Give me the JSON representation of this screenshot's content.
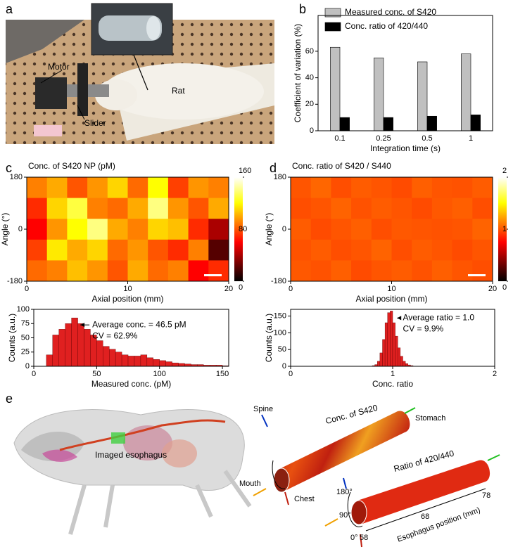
{
  "panel_labels": [
    "a",
    "b",
    "c",
    "d",
    "e"
  ],
  "photo_a": {
    "labels": [
      "Motor",
      "Slider",
      "Rat"
    ]
  },
  "chart_data": [
    {
      "type": "bar",
      "categories": [
        "0.1",
        "0.25",
        "0.5",
        "1"
      ],
      "series": [
        {
          "name": "Measured conc. of S420",
          "color": "#c0c0c0",
          "values": [
            63,
            55,
            52,
            58
          ]
        },
        {
          "name": "Conc. ratio of 420/440",
          "color": "#000000",
          "values": [
            10,
            10,
            11,
            12
          ]
        }
      ],
      "ylim": [
        0,
        87
      ],
      "yticks": [
        0,
        20,
        40,
        60
      ],
      "xlabel": "Integration time (s)",
      "ylabel": "Coefficient of variation (%)"
    },
    {
      "type": "heatmap",
      "title": "Conc. of S420 NP (pM)",
      "xlim": [
        0,
        20
      ],
      "xticks": [
        0,
        10,
        20
      ],
      "ylim": [
        -180,
        180
      ],
      "yticks": [
        -180,
        0,
        180
      ],
      "xlabel": "Axial position (mm)",
      "ylabel": "Angle (°)",
      "z": [
        [
          90,
          100,
          80,
          95,
          110,
          85,
          120,
          75,
          95,
          90
        ],
        [
          70,
          110,
          130,
          90,
          85,
          100,
          140,
          95,
          80,
          100
        ],
        [
          60,
          95,
          120,
          140,
          100,
          90,
          110,
          105,
          70,
          40
        ],
        [
          75,
          115,
          100,
          110,
          85,
          95,
          80,
          70,
          90,
          20
        ],
        [
          85,
          90,
          105,
          95,
          80,
          100,
          85,
          90,
          60,
          70
        ]
      ],
      "colorbar": {
        "lim": [
          0,
          160
        ],
        "ticks": [
          0,
          80,
          160
        ]
      }
    },
    {
      "type": "histogram",
      "color": "#e02020",
      "bins": [
        10,
        15,
        20,
        25,
        30,
        35,
        40,
        45,
        50,
        55,
        60,
        65,
        70,
        75,
        80,
        85,
        90,
        95,
        100,
        105,
        110,
        115,
        120,
        125,
        130,
        135,
        140,
        145,
        150,
        155
      ],
      "values": [
        20,
        55,
        65,
        75,
        85,
        75,
        65,
        55,
        45,
        35,
        30,
        25,
        20,
        18,
        18,
        20,
        15,
        12,
        10,
        8,
        6,
        5,
        4,
        3,
        3,
        2,
        2,
        2,
        1
      ],
      "xlim": [
        0,
        155
      ],
      "xticks": [
        0,
        50,
        100,
        150
      ],
      "ylim": [
        0,
        100
      ],
      "yticks": [
        0,
        25,
        50,
        75,
        100
      ],
      "xlabel": "Measured conc. (pM)",
      "ylabel": "Counts (a.u.)",
      "annotations": [
        "Average conc. = 46.5 pM",
        "CV = 62.9%"
      ]
    },
    {
      "type": "heatmap",
      "title": "Conc. ratio of S420 / S440",
      "xlim": [
        0,
        20
      ],
      "xticks": [
        0,
        10,
        20
      ],
      "ylim": [
        -180,
        180
      ],
      "yticks": [
        -180,
        0,
        180
      ],
      "xlabel": "Axial position (mm)",
      "ylabel": "Angle (°)",
      "z": [
        [
          1.0,
          1.05,
          0.98,
          1.02,
          1.0,
          0.97,
          1.03,
          1.0,
          0.99,
          1.02
        ],
        [
          0.98,
          1.0,
          1.04,
          0.99,
          1.02,
          1.0,
          0.97,
          1.01,
          1.03,
          0.98
        ],
        [
          1.02,
          0.97,
          1.0,
          1.03,
          0.98,
          1.01,
          1.0,
          0.99,
          1.0,
          1.04
        ],
        [
          0.99,
          1.02,
          0.98,
          1.0,
          1.04,
          0.98,
          1.02,
          1.0,
          0.97,
          1.0
        ],
        [
          1.01,
          0.99,
          1.03,
          0.97,
          1.0,
          1.02,
          0.99,
          1.03,
          1.0,
          0.98
        ]
      ],
      "colorbar": {
        "lim": [
          0,
          2
        ],
        "ticks": [
          0,
          1,
          2
        ]
      }
    },
    {
      "type": "histogram",
      "color": "#e02020",
      "bins": [
        0.8,
        0.825,
        0.85,
        0.875,
        0.9,
        0.925,
        0.95,
        0.975,
        1.0,
        1.025,
        1.05,
        1.075,
        1.1,
        1.125,
        1.15,
        1.175,
        1.2
      ],
      "values": [
        2,
        5,
        15,
        40,
        80,
        130,
        160,
        165,
        130,
        90,
        55,
        30,
        15,
        8,
        4,
        2
      ],
      "xlim": [
        0,
        2
      ],
      "xticks": [
        0,
        1,
        2
      ],
      "ylim": [
        0,
        170
      ],
      "yticks": [
        0,
        50,
        100,
        150
      ],
      "xlabel": "Conc. ratio",
      "ylabel": "Counts (a.u.)",
      "annotations": [
        "Average ratio = 1.0",
        "CV = 9.9%"
      ]
    }
  ],
  "illustration_e": {
    "imaged_label": "Imaged esophagus",
    "tube1_title": "Conc. of S420",
    "directions": [
      "Spine",
      "Stomach",
      "Mouth",
      "Chest"
    ],
    "tube2_title": "Ratio of 420/440",
    "angles": [
      "180°",
      "90°",
      "0°"
    ],
    "position_ticks": [
      58,
      68,
      78
    ],
    "position_label": "Esophagus position (mm)"
  }
}
